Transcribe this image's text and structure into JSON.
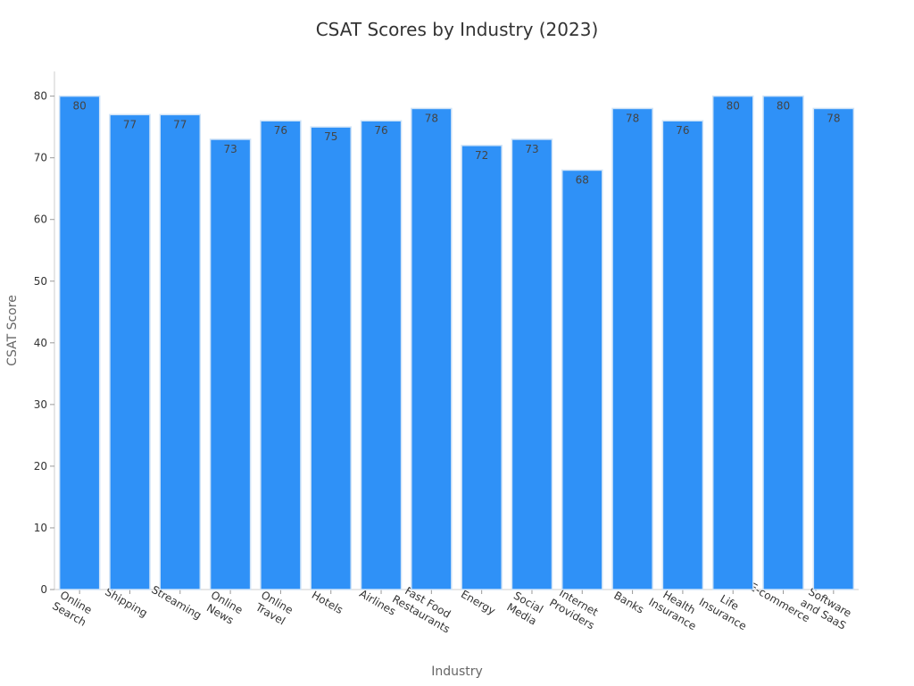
{
  "chart_data": {
    "type": "bar",
    "title": "CSAT Scores by Industry (2023)",
    "xlabel": "Industry",
    "ylabel": "CSAT Score",
    "ylim": [
      0,
      84
    ],
    "yticks": [
      0,
      10,
      20,
      30,
      40,
      50,
      60,
      70,
      80
    ],
    "grid": false,
    "bar_color": "#2f91f7",
    "bar_edge_color": "#cfe3f7",
    "categories": [
      [
        "Online",
        "Search"
      ],
      [
        "Shipping"
      ],
      [
        "Streaming"
      ],
      [
        "Online",
        "News"
      ],
      [
        "Online",
        "Travel"
      ],
      [
        "Hotels"
      ],
      [
        "Airlines"
      ],
      [
        "Fast Food",
        "Restaurants"
      ],
      [
        "Energy"
      ],
      [
        "Social",
        "Media"
      ],
      [
        "Internet",
        "Providers"
      ],
      [
        "Banks"
      ],
      [
        "Health",
        "Insurance"
      ],
      [
        "Life",
        "Insurance"
      ],
      [
        "E-commerce"
      ],
      [
        "Software",
        "and SaaS"
      ]
    ],
    "values": [
      80,
      77,
      77,
      73,
      76,
      75,
      76,
      78,
      72,
      73,
      68,
      78,
      76,
      80,
      80,
      78
    ]
  }
}
